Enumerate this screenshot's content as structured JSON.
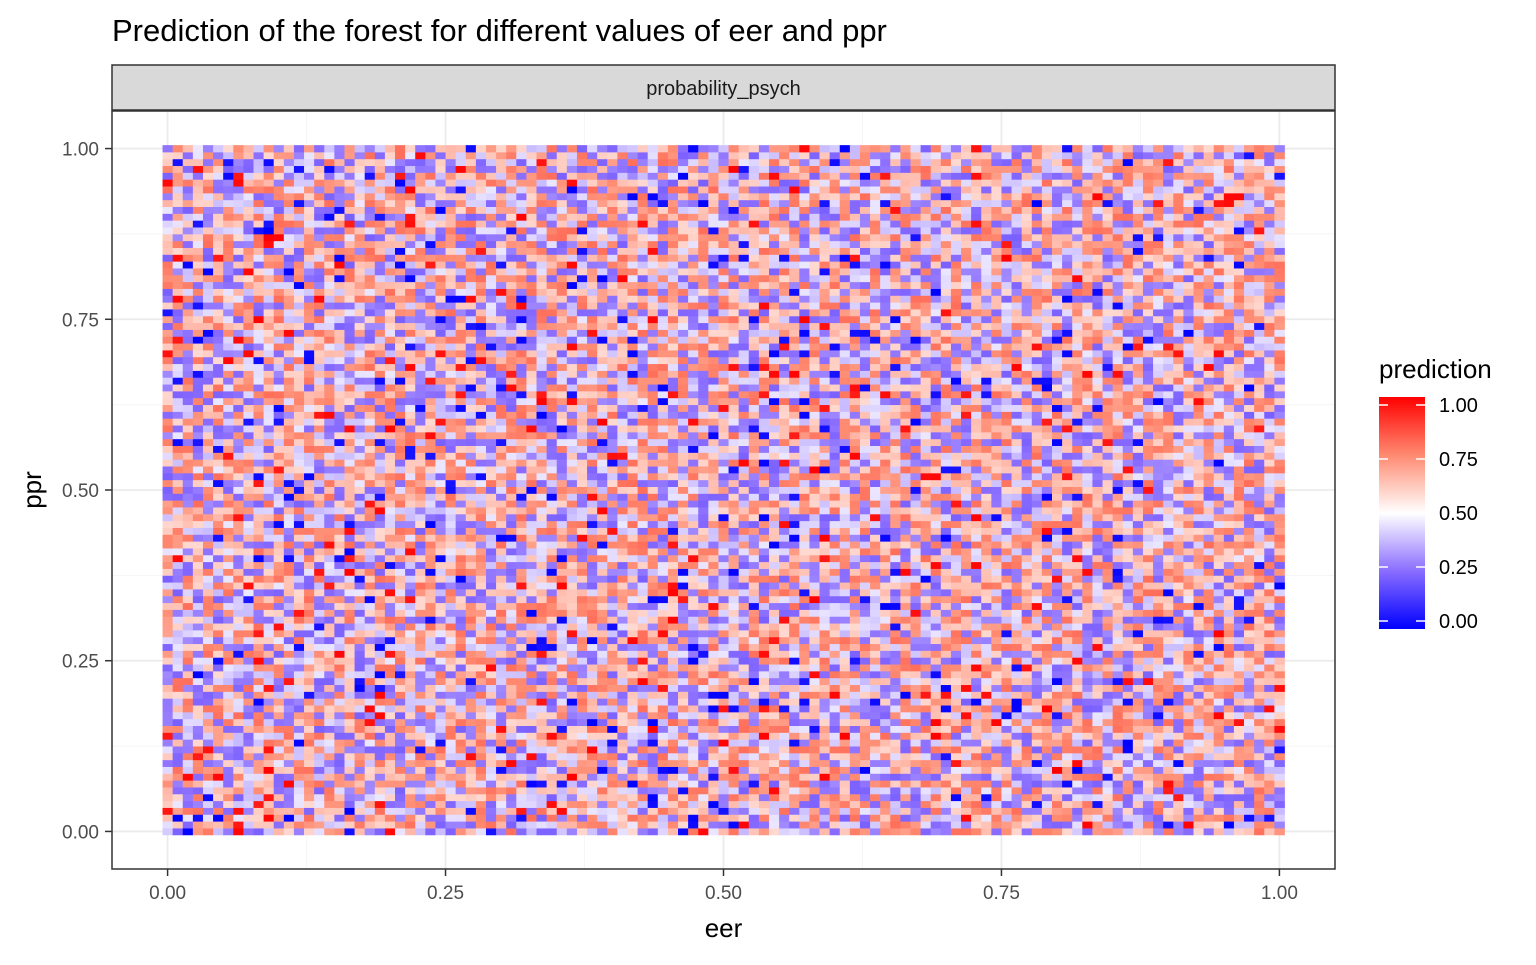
{
  "chart_data": {
    "type": "heatmap",
    "title": "Prediction of the forest for different values of eer and ppr",
    "facet_label": "probability_psych",
    "xlabel": "eer",
    "ylabel": "ppr",
    "xlim": [
      -0.05,
      1.05
    ],
    "ylim": [
      -0.055,
      1.055
    ],
    "x_ticks": [
      0,
      0.25,
      0.5,
      0.75,
      1
    ],
    "x_tick_labels": [
      "0.00",
      "0.25",
      "0.50",
      "0.75",
      "1.00"
    ],
    "y_ticks": [
      0,
      0.25,
      0.5,
      0.75,
      1
    ],
    "y_tick_labels": [
      "0.00",
      "0.25",
      "0.50",
      "0.75",
      "1.00"
    ],
    "grid": {
      "x_range": [
        0,
        1
      ],
      "y_range": [
        0,
        1
      ],
      "n_x": 111,
      "n_y": 101,
      "values_note": "cell values are a pseudo-random field in [0,1]; individual cells are not legible",
      "seed": 20240517
    },
    "legend": {
      "title": "prediction",
      "position": "right",
      "breaks": [
        1,
        0.75,
        0.5,
        0.25,
        0
      ],
      "labels": [
        "1.00",
        "0.75",
        "0.50",
        "0.25",
        "0.00"
      ],
      "colors": {
        "low": "#0000ff",
        "mid": "#ffffff",
        "high": "#ff0000"
      }
    },
    "colors": {
      "panel_border": "#333333",
      "strip_fill": "#d9d9d9",
      "grid_major": "#ebebeb",
      "grid_minor": "#f5f5f5",
      "axis_text": "#4d4d4d"
    }
  }
}
